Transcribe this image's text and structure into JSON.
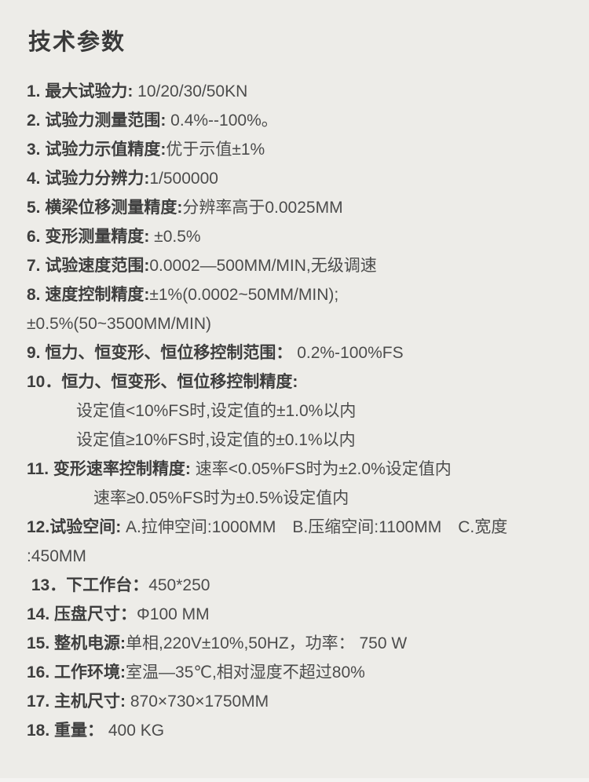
{
  "page": {
    "title": "技术参数",
    "background": "#edece8",
    "title_color": "#3a3a3a",
    "label_color": "#3e3e3e",
    "value_color": "#4c4c4c"
  },
  "spec_lines": [
    {
      "label": "1. 最大试验力:",
      "value": " 10/20/30/50KN",
      "indent": 0
    },
    {
      "label": "2. 试验力测量范围:",
      "value": " 0.4%--100%。",
      "indent": 0
    },
    {
      "label": "3. 试验力示值精度:",
      "value": "优于示值±1%",
      "indent": 0
    },
    {
      "label": "4. 试验力分辨力:",
      "value": "1/500000",
      "indent": 0
    },
    {
      "label": "5. 横梁位移测量精度:",
      "value": "分辨率高于0.0025MM",
      "indent": 0
    },
    {
      "label": "6. 变形测量精度:",
      "value": " ±0.5%",
      "indent": 0
    },
    {
      "label": "7. 试验速度范围:",
      "value": "0.0002—500MM/MIN,无级调速",
      "indent": 0
    },
    {
      "label": "8. 速度控制精度:",
      "value": "±1%(0.0002~50MM/MIN);",
      "indent": 0
    },
    {
      "label": "",
      "value": "±0.5%(50~3500MM/MIN)",
      "indent": 0
    },
    {
      "label": "9. 恒力、恒变形、恒位移控制范围：",
      "value": " 0.2%-100%FS",
      "indent": 0
    },
    {
      "label": "10．恒力、恒变形、恒位移控制精度:",
      "value": "",
      "indent": 0
    },
    {
      "label": "",
      "value": "设定值<10%FS时,设定值的±1.0%以内",
      "indent": 1
    },
    {
      "label": "",
      "value": "设定值≥10%FS时,设定值的±0.1%以内",
      "indent": 1
    },
    {
      "label": "11. 变形速率控制精度:",
      "value": " 速率<0.05%FS时为±2.0%设定值内",
      "indent": 0
    },
    {
      "label": "",
      "value": "速率≥0.05%FS时为±0.5%设定值内",
      "indent": 2
    },
    {
      "label": "12.试验空间:",
      "value": " A.拉伸空间:1000MM　B.压缩空间:1100MM　C.宽度",
      "indent": 0
    },
    {
      "label": "",
      "value": ":450MM",
      "indent": 0
    },
    {
      "label": " 13．下工作台：",
      "value": "450*250",
      "indent": 0
    },
    {
      "label": "14. 压盘尺寸：",
      "value": "Φ100 MM",
      "indent": 0
    },
    {
      "label": "15. 整机电源:",
      "value": "单相,220V±10%,50HZ，功率： 750 W",
      "indent": 0
    },
    {
      "label": "16. 工作环境:",
      "value": "室温—35℃,相对湿度不超过80%",
      "indent": 0
    },
    {
      "label": "17. 主机尺寸:",
      "value": " 870×730×1750MM",
      "indent": 0
    },
    {
      "label": "18. 重量：",
      "value": " 400 KG",
      "indent": 0
    }
  ]
}
